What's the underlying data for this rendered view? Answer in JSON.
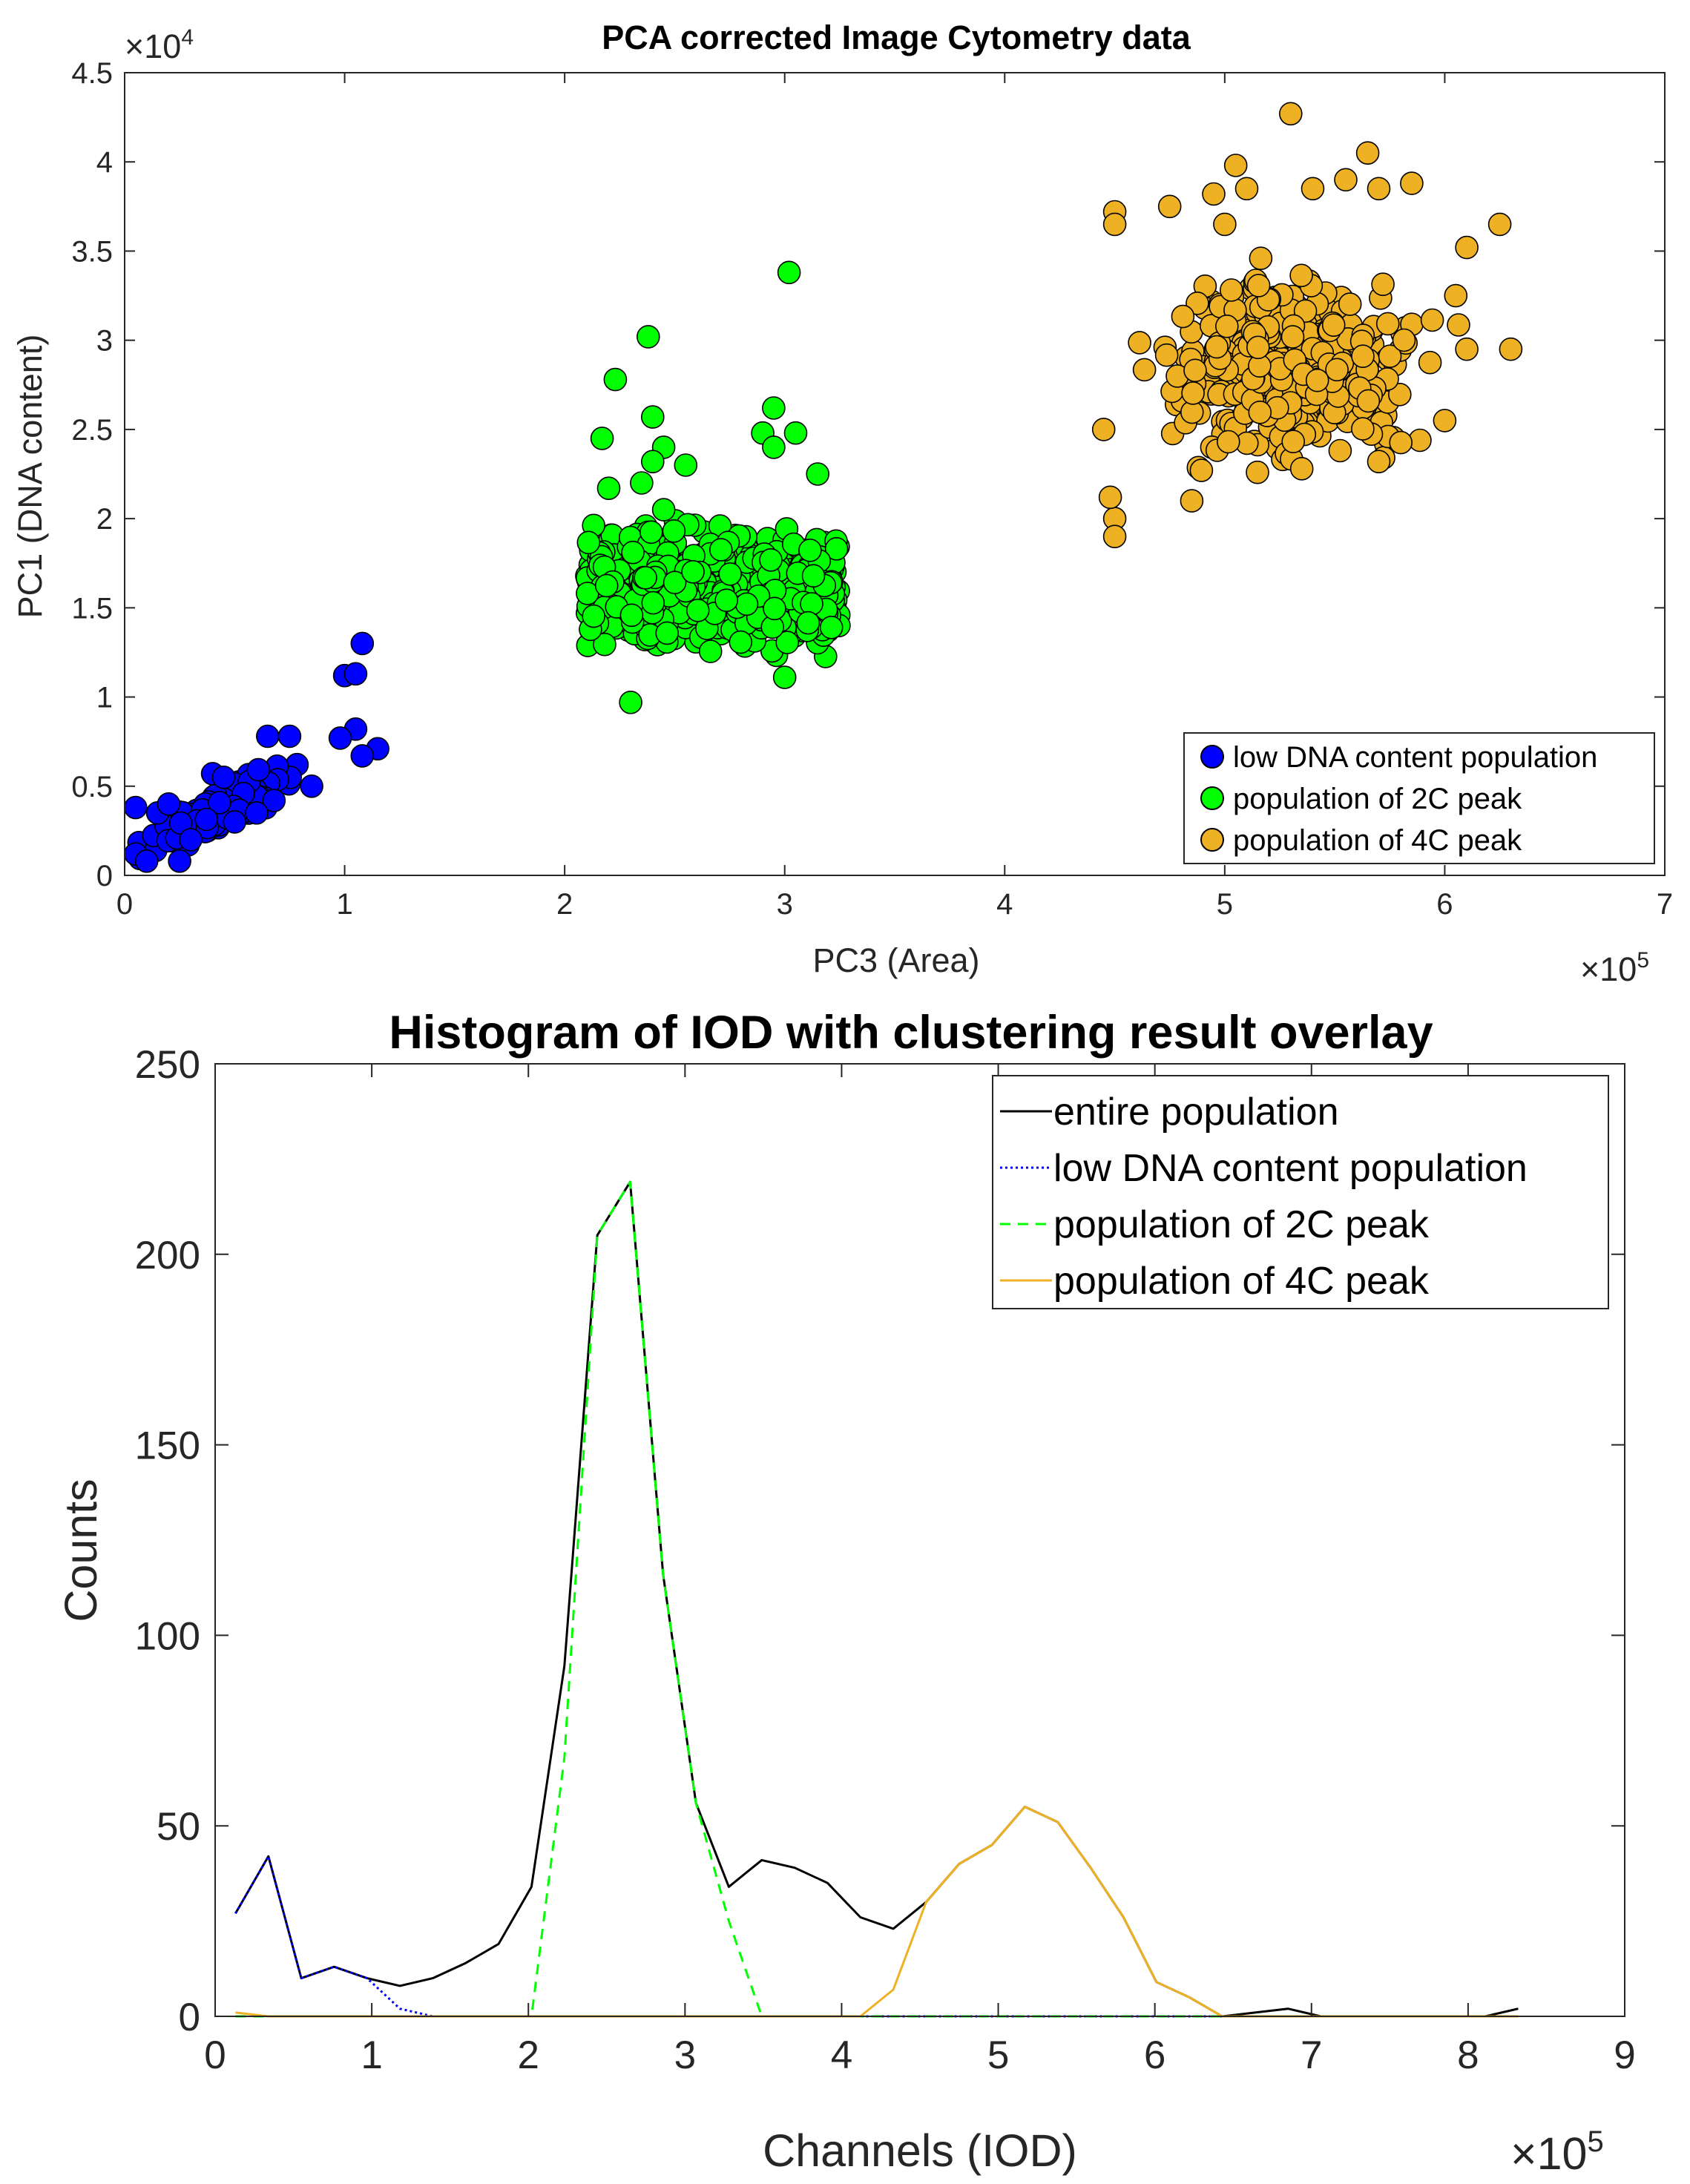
{
  "chart_data": [
    {
      "type": "scatter",
      "title": "PCA corrected Image Cytometry data",
      "xlabel": "PC3 (Area)",
      "ylabel": "PC1 (DNA content)",
      "x_exponent_label": "×10",
      "x_exponent": "5",
      "y_exponent_label": "×10",
      "y_exponent": "4",
      "xlim": [
        0,
        7
      ],
      "ylim": [
        0,
        4.5
      ],
      "xticks": [
        "0",
        "1",
        "2",
        "3",
        "4",
        "5",
        "6",
        "7"
      ],
      "yticks": [
        "0",
        "0.5",
        "1",
        "1.5",
        "2",
        "2.5",
        "3",
        "3.5",
        "4",
        "4.5"
      ],
      "legend_position": "bottom-right",
      "series": [
        {
          "name": "low DNA content population",
          "color": "#0000ff",
          "cluster": {
            "x_center": 0.45,
            "x_spread": 0.28,
            "y_base": 0.1,
            "y_slope": 0.62,
            "y_spread": 0.09,
            "count": 170
          },
          "points": [
            [
              0.05,
              0.38
            ],
            [
              0.15,
              0.35
            ],
            [
              0.2,
              0.4
            ],
            [
              0.05,
              0.12
            ],
            [
              1.0,
              1.12
            ],
            [
              1.05,
              1.13
            ],
            [
              1.08,
              1.3
            ],
            [
              1.15,
              0.71
            ],
            [
              1.05,
              0.82
            ],
            [
              0.98,
              0.77
            ],
            [
              1.08,
              0.67
            ],
            [
              0.85,
              0.5
            ],
            [
              0.65,
              0.78
            ],
            [
              0.75,
              0.78
            ],
            [
              0.4,
              0.57
            ],
            [
              0.45,
              0.55
            ],
            [
              0.3,
              0.2
            ],
            [
              0.1,
              0.08
            ],
            [
              0.25,
              0.08
            ],
            [
              0.5,
              0.3
            ],
            [
              0.6,
              0.35
            ]
          ]
        },
        {
          "name": "population of 2C peak",
          "color": "#00ff00",
          "cluster": {
            "x_min": 2.1,
            "x_max": 3.25,
            "y_center": 1.6,
            "y_spread": 0.28,
            "count": 620
          },
          "points": [
            [
              3.02,
              3.38
            ],
            [
              2.38,
              3.02
            ],
            [
              2.23,
              2.78
            ],
            [
              2.4,
              2.57
            ],
            [
              2.45,
              2.4
            ],
            [
              2.4,
              2.32
            ],
            [
              2.35,
              2.2
            ],
            [
              2.95,
              2.62
            ],
            [
              2.9,
              2.48
            ],
            [
              3.05,
              2.48
            ],
            [
              2.95,
              2.4
            ],
            [
              3.15,
              2.25
            ],
            [
              2.17,
              2.45
            ],
            [
              2.2,
              2.17
            ],
            [
              3.0,
              1.11
            ],
            [
              2.3,
              0.97
            ],
            [
              2.55,
              2.3
            ],
            [
              2.45,
              2.05
            ]
          ]
        },
        {
          "name": "population of 4C peak",
          "color": "#eeb124",
          "cluster": {
            "x_center": 5.3,
            "x_spread": 0.5,
            "y_center": 2.85,
            "y_spread": 0.45,
            "count": 420
          },
          "points": [
            [
              5.3,
              4.27
            ],
            [
              5.65,
              4.05
            ],
            [
              5.05,
              3.98
            ],
            [
              5.1,
              3.85
            ],
            [
              5.4,
              3.85
            ],
            [
              5.55,
              3.9
            ],
            [
              5.85,
              3.88
            ],
            [
              5.7,
              3.85
            ],
            [
              6.25,
              3.65
            ],
            [
              6.1,
              3.52
            ],
            [
              4.75,
              3.75
            ],
            [
              4.5,
              3.72
            ],
            [
              4.5,
              3.65
            ],
            [
              4.95,
              3.82
            ],
            [
              4.45,
              2.5
            ],
            [
              4.5,
              2.0
            ],
            [
              4.5,
              1.9
            ],
            [
              4.48,
              2.12
            ],
            [
              6.3,
              2.95
            ],
            [
              6.1,
              2.95
            ],
            [
              6.0,
              2.55
            ],
            [
              5.7,
              2.32
            ],
            [
              5.35,
              2.28
            ],
            [
              6.05,
              3.25
            ],
            [
              5.0,
              3.65
            ],
            [
              4.85,
              2.1
            ]
          ]
        }
      ]
    },
    {
      "type": "line",
      "title": "Histogram of IOD with clustering result overlay",
      "xlabel": "Channels (IOD)",
      "ylabel": "Counts",
      "x_exponent_label": "×10",
      "x_exponent": "5",
      "xlim": [
        0,
        9
      ],
      "ylim": [
        0,
        250
      ],
      "xticks": [
        "0",
        "1",
        "2",
        "3",
        "4",
        "5",
        "6",
        "7",
        "8",
        "9"
      ],
      "yticks": [
        "0",
        "50",
        "100",
        "150",
        "200",
        "250"
      ],
      "legend_position": "top-right",
      "x": [
        0.13,
        0.34,
        0.55,
        0.76,
        0.97,
        1.18,
        1.39,
        1.6,
        1.81,
        2.02,
        2.23,
        2.44,
        2.65,
        2.86,
        3.07,
        3.28,
        3.49,
        3.7,
        3.91,
        4.12,
        4.33,
        4.54,
        4.75,
        4.96,
        5.17,
        5.38,
        5.59,
        5.8,
        6.01,
        6.22,
        6.43,
        6.64,
        6.85,
        7.06,
        7.27,
        7.48,
        7.69,
        7.9,
        8.11,
        8.32
      ],
      "series": [
        {
          "name": "entire population",
          "color": "#000000",
          "dash": "solid",
          "values": [
            27,
            42,
            10,
            13,
            10,
            8,
            10,
            14,
            19,
            34,
            92,
            205,
            219,
            116,
            56,
            34,
            41,
            39,
            35,
            26,
            23,
            30,
            40,
            45,
            55,
            51,
            39,
            26,
            9,
            5,
            0,
            1,
            2,
            0,
            0,
            0,
            0,
            0,
            0,
            2
          ]
        },
        {
          "name": "low DNA content population",
          "color": "#0000ff",
          "dash": "dotted",
          "values": [
            27,
            42,
            10,
            13,
            10,
            2,
            0,
            0,
            0,
            0,
            0,
            0,
            0,
            0,
            0,
            0,
            0,
            0,
            0,
            0,
            0,
            0,
            0,
            0,
            0,
            0,
            0,
            0,
            0,
            0,
            0,
            0,
            0,
            0,
            0,
            0,
            0,
            0,
            0,
            0
          ]
        },
        {
          "name": "population of 2C peak",
          "color": "#00ff00",
          "dash": "dashed",
          "values": [
            0,
            0,
            0,
            0,
            0,
            0,
            0,
            0,
            0,
            0,
            68,
            205,
            219,
            116,
            56,
            25,
            0,
            0,
            0,
            0,
            0,
            0,
            0,
            0,
            0,
            0,
            0,
            0,
            0,
            0,
            0,
            0,
            0,
            0,
            0,
            0,
            0,
            0,
            0,
            0
          ]
        },
        {
          "name": "population of 4C peak",
          "color": "#eeb124",
          "dash": "solid",
          "values": [
            1,
            0,
            0,
            0,
            0,
            0,
            0,
            0,
            0,
            0,
            0,
            0,
            0,
            0,
            0,
            0,
            0,
            0,
            0,
            0,
            7,
            30,
            40,
            45,
            55,
            51,
            39,
            26,
            9,
            5,
            0,
            0,
            0,
            0,
            0,
            0,
            0,
            0,
            0,
            0
          ]
        }
      ]
    }
  ]
}
